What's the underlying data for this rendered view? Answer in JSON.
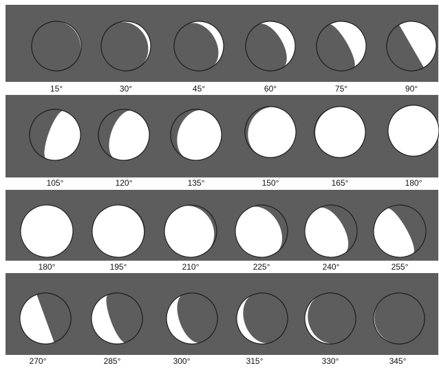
{
  "colors": {
    "background": "#ffffff",
    "panel": "#5d5d5d",
    "lit": "#ffffff",
    "outline": "#1c1c1c",
    "label_text": "#111111"
  },
  "rows": [
    {
      "labels": [
        "15°",
        "30°",
        "45°",
        "60°",
        "75°",
        "90°"
      ],
      "angles": [
        15,
        30,
        45,
        60,
        75,
        90
      ]
    },
    {
      "labels": [
        "105°",
        "120°",
        "135°",
        "150°",
        "165°",
        "180°"
      ],
      "angles": [
        105,
        120,
        135,
        150,
        165,
        180
      ]
    },
    {
      "labels": [
        "180°",
        "195°",
        "210°",
        "225°",
        "240°",
        "255°"
      ],
      "angles": [
        180,
        195,
        210,
        225,
        240,
        255
      ]
    },
    {
      "labels": [
        "270°",
        "285°",
        "300°",
        "315°",
        "330°",
        "345°"
      ],
      "angles": [
        270,
        285,
        300,
        315,
        330,
        345
      ]
    }
  ]
}
